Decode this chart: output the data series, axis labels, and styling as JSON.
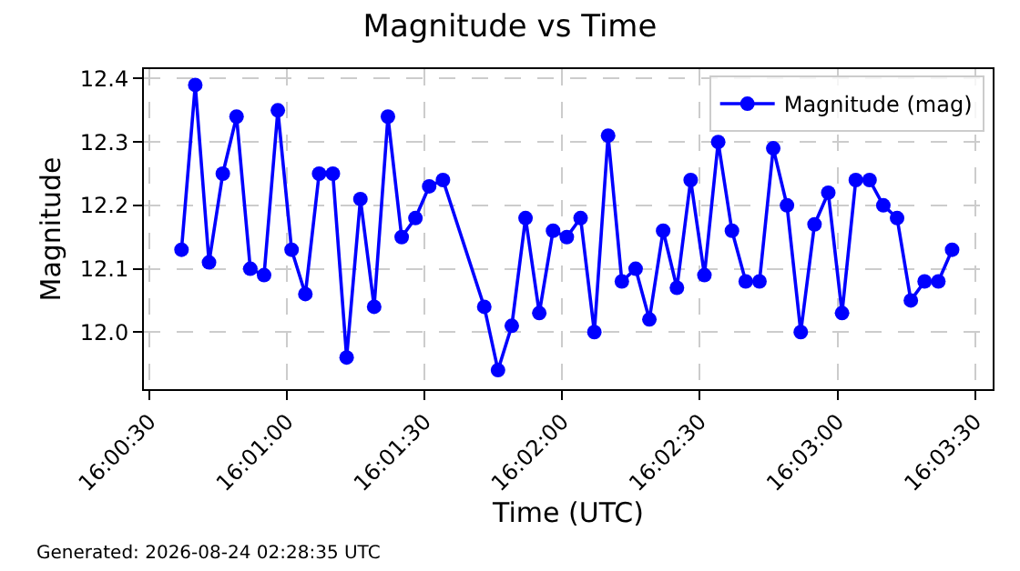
{
  "chart_data": {
    "type": "line",
    "title": "Magnitude vs Time",
    "xlabel": "Time (UTC)",
    "ylabel": "Magnitude",
    "x": [
      16.010278,
      16.011111,
      16.011944,
      16.012778,
      16.013611,
      16.014444,
      16.015278,
      16.016111,
      16.016944,
      16.017778,
      16.018611,
      16.019444,
      16.020278,
      16.021111,
      16.021944,
      16.022778,
      16.023611,
      16.024444,
      16.025278,
      16.026111,
      16.028611,
      16.029444,
      16.030278,
      16.031111,
      16.031944,
      16.032778,
      16.033611,
      16.034444,
      16.035278,
      16.036111,
      16.036944,
      16.037778,
      16.038611,
      16.039444,
      16.040278,
      16.041111,
      16.041944,
      16.042778,
      16.043611,
      16.044444,
      16.045278,
      16.046111,
      16.046944,
      16.047778,
      16.048611,
      16.049444,
      16.050278,
      16.051111,
      16.051944,
      16.052778,
      16.053611,
      16.054444,
      16.055278,
      16.056111,
      16.056944
    ],
    "series": [
      {
        "name": "Magnitude (mag)",
        "color": "#0000ff",
        "values": [
          12.13,
          12.39,
          12.11,
          12.25,
          12.34,
          12.1,
          12.09,
          12.35,
          12.13,
          12.06,
          12.25,
          12.25,
          11.96,
          12.21,
          12.04,
          12.34,
          12.15,
          12.18,
          12.23,
          12.24,
          12.04,
          11.94,
          12.01,
          12.18,
          12.03,
          12.16,
          12.15,
          12.18,
          12.0,
          12.31,
          12.08,
          12.1,
          12.02,
          12.16,
          12.07,
          12.24,
          12.09,
          12.3,
          12.16,
          12.08,
          12.08,
          12.29,
          12.2,
          12.0,
          12.17,
          12.22,
          12.03,
          12.24,
          12.24,
          12.2,
          12.18,
          12.05,
          12.08,
          12.08,
          12.13
        ]
      }
    ],
    "xlim": [
      16.008,
      16.0594
    ],
    "xticks": [
      {
        "value": 16.008333,
        "label": "16:00:30"
      },
      {
        "value": 16.016667,
        "label": "16:01:00"
      },
      {
        "value": 16.025,
        "label": "16:01:30"
      },
      {
        "value": 16.033333,
        "label": "16:02:00"
      },
      {
        "value": 16.041667,
        "label": "16:02:30"
      },
      {
        "value": 16.05,
        "label": "16:03:00"
      },
      {
        "value": 16.058333,
        "label": "16:03:30"
      }
    ],
    "ylim": [
      11.91,
      12.415
    ],
    "yticks": [
      {
        "value": 12.0,
        "label": "12.0"
      },
      12.1,
      12.2,
      12.3,
      12.4
    ],
    "grid": true,
    "legend": "top right",
    "marker": "circle",
    "line_style": "solid",
    "annotations": [
      "Generated: 2026-08-24 02:28:35 UTC"
    ]
  }
}
